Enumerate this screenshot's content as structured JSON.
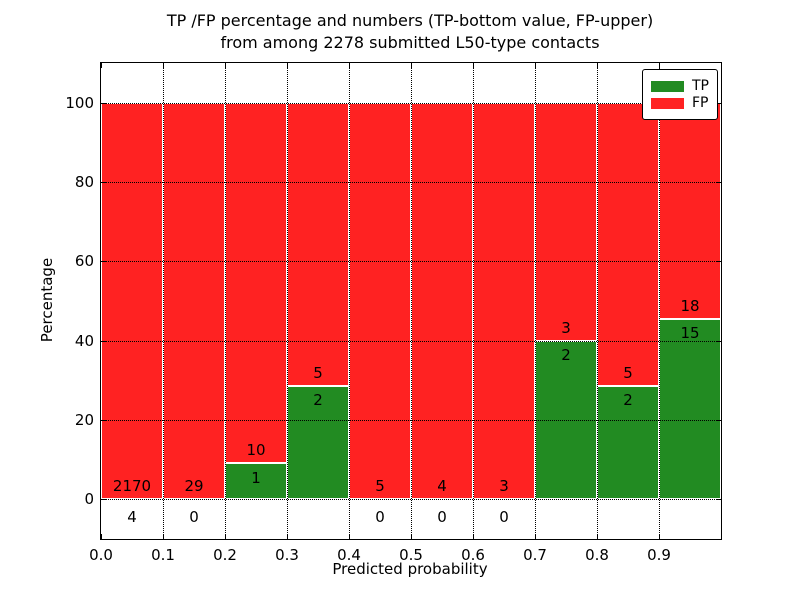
{
  "chart_data": {
    "type": "bar",
    "stacked": true,
    "title": "TP /FP percentage and numbers (TP-bottom value, FP-upper) from among 2278 submitted L50-type contacts",
    "title_lines": [
      "TP /FP percentage and numbers (TP-bottom value, FP-upper)",
      "from among 2278 submitted L50-type contacts"
    ],
    "xlabel": "Predicted probability",
    "ylabel": "Percentage",
    "xlim": [
      0,
      1
    ],
    "ylim": [
      -10,
      110
    ],
    "grid": "dotted",
    "legend_position": "upper right",
    "total_contacts": 2278,
    "colors": {
      "tp": "#228b22",
      "fp": "#ff2222"
    },
    "legend": [
      {
        "key": "tp",
        "label": "TP",
        "color": "#228b22"
      },
      {
        "key": "fp",
        "label": "FP",
        "color": "#ff2222"
      }
    ],
    "xticks": [
      {
        "value": 0.0,
        "label": "0.0"
      },
      {
        "value": 0.1,
        "label": "0.1"
      },
      {
        "value": 0.2,
        "label": "0.2"
      },
      {
        "value": 0.3,
        "label": "0.3"
      },
      {
        "value": 0.4,
        "label": "0.4"
      },
      {
        "value": 0.5,
        "label": "0.5"
      },
      {
        "value": 0.6,
        "label": "0.6"
      },
      {
        "value": 0.7,
        "label": "0.7"
      },
      {
        "value": 0.8,
        "label": "0.8"
      },
      {
        "value": 0.9,
        "label": "0.9"
      },
      {
        "value": 1.0,
        "label": ""
      }
    ],
    "yticks": [
      {
        "value": 0,
        "label": "0"
      },
      {
        "value": 20,
        "label": "20"
      },
      {
        "value": 40,
        "label": "40"
      },
      {
        "value": 60,
        "label": "60"
      },
      {
        "value": 80,
        "label": "80"
      },
      {
        "value": 100,
        "label": "100"
      }
    ],
    "bins": [
      {
        "range": [
          0.0,
          0.1
        ],
        "tp": 4,
        "fp": 2170,
        "tp_pct": 0.18
      },
      {
        "range": [
          0.1,
          0.2
        ],
        "tp": 0,
        "fp": 29,
        "tp_pct": 0.0
      },
      {
        "range": [
          0.2,
          0.3
        ],
        "tp": 1,
        "fp": 10,
        "tp_pct": 9.09
      },
      {
        "range": [
          0.3,
          0.4
        ],
        "tp": 2,
        "fp": 5,
        "tp_pct": 28.57
      },
      {
        "range": [
          0.4,
          0.5
        ],
        "tp": 0,
        "fp": 5,
        "tp_pct": 0.0
      },
      {
        "range": [
          0.5,
          0.6
        ],
        "tp": 0,
        "fp": 4,
        "tp_pct": 0.0
      },
      {
        "range": [
          0.6,
          0.7
        ],
        "tp": 0,
        "fp": 3,
        "tp_pct": 0.0
      },
      {
        "range": [
          0.7,
          0.8
        ],
        "tp": 2,
        "fp": 3,
        "tp_pct": 40.0
      },
      {
        "range": [
          0.8,
          0.9
        ],
        "tp": 2,
        "fp": 5,
        "tp_pct": 28.57
      },
      {
        "range": [
          0.9,
          1.0
        ],
        "tp": 15,
        "fp": 18,
        "tp_pct": 45.45
      }
    ]
  }
}
